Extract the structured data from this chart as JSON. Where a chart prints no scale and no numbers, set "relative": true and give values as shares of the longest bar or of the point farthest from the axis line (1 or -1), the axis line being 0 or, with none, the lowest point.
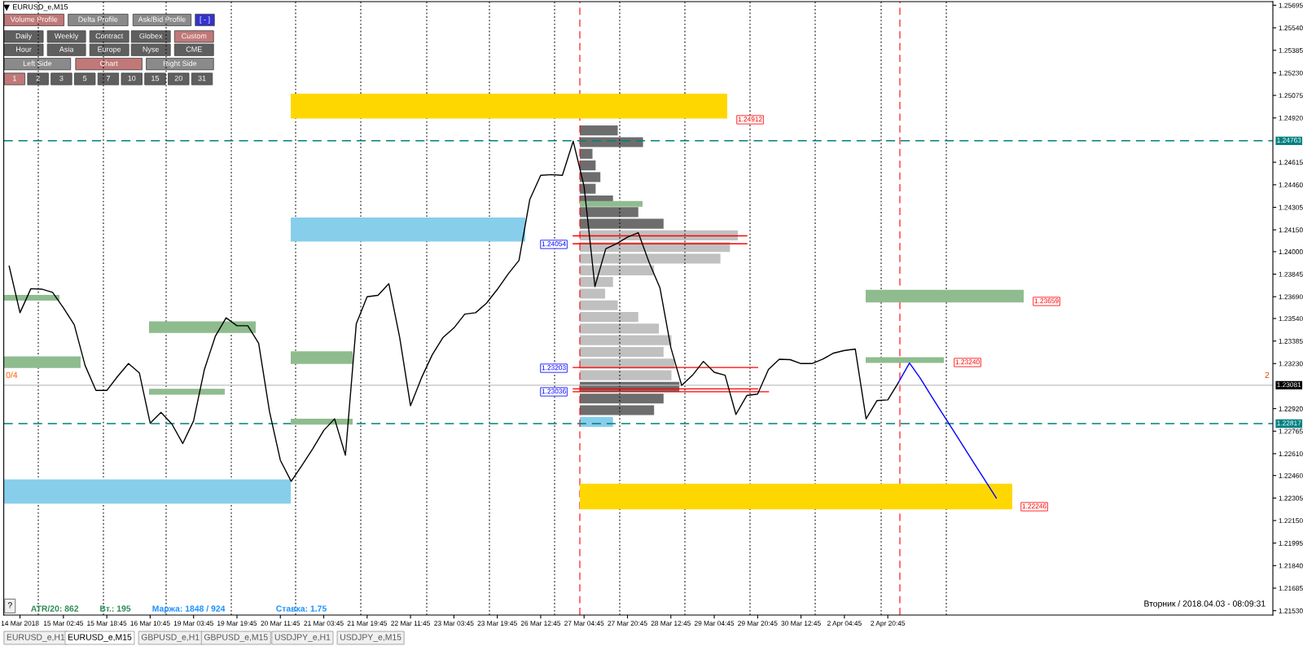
{
  "chart_data": [
    {
      "type": "line",
      "title": "EURUSD_e,M15",
      "categories": [
        null,
        "14 Mar 2018",
        null,
        null,
        null,
        "15 Mar 02:45",
        null,
        null,
        null,
        "15 Mar 18:45",
        null,
        null,
        null,
        "16 Mar 10:45",
        null,
        null,
        null,
        "19 Mar 03:45",
        null,
        null,
        null,
        "19 Mar 19:45",
        null,
        null,
        null,
        "20 Mar 11:45",
        null,
        null,
        null,
        "21 Mar 03:45",
        null,
        null,
        null,
        "21 Mar 19:45",
        null,
        null,
        null,
        "22 Mar 11:45",
        null,
        null,
        null,
        "23 Mar 03:45",
        null,
        null,
        null,
        "23 Mar 19:45",
        null,
        null,
        null,
        "26 Mar 12:45",
        null,
        null,
        null,
        "27 Mar 04:45",
        null,
        null,
        null,
        "27 Mar 20:45",
        null,
        null,
        null,
        "28 Mar 12:45",
        null,
        null,
        null,
        "29 Mar 04:45",
        null,
        null,
        null,
        "29 Mar 20:45",
        null,
        null,
        null,
        "30 Mar 12:45",
        null,
        null,
        null,
        "2 Apr 04:45",
        null,
        null,
        null,
        "2 Apr 20:45",
        null,
        null,
        null,
        null,
        null,
        null,
        null,
        null,
        null,
        null,
        null,
        null,
        null,
        null,
        null,
        null,
        null,
        null,
        null,
        null,
        null,
        null,
        null,
        null,
        null,
        null,
        null,
        null,
        null,
        null,
        null,
        null,
        null,
        null,
        null
      ],
      "ylim": [
        1.215,
        1.2572
      ],
      "yticks": [
        1.25695,
        {
          "value": 1.2554,
          "label": "1.25540"
        },
        1.25385,
        {
          "value": 1.2523,
          "label": "1.25230"
        },
        1.25075,
        {
          "value": 1.2492,
          "label": "1.24920"
        },
        1.24615,
        {
          "value": 1.2446,
          "label": "1.24460"
        },
        1.24305,
        {
          "value": 1.2415,
          "label": "1.24150"
        },
        {
          "value": 1.24,
          "label": "1.24000"
        },
        1.23845,
        {
          "value": 1.2369,
          "label": "1.23690"
        },
        {
          "value": 1.2354,
          "label": "1.23540"
        },
        1.23385,
        {
          "value": 1.2323,
          "label": "1.23230"
        },
        {
          "value": 1.2292,
          "label": "1.22920"
        },
        1.22765,
        {
          "value": 1.2261,
          "label": "1.22610"
        },
        {
          "value": 1.2246,
          "label": "1.22460"
        },
        1.22305,
        {
          "value": 1.2215,
          "label": "1.22150"
        },
        1.21995,
        {
          "value": 1.2184,
          "label": "1.21840"
        },
        1.21685,
        {
          "value": 1.2153,
          "label": "1.21530"
        }
      ],
      "legend": false,
      "grid": false,
      "bands": [
        {
          "axis": "y",
          "from": 1.24916,
          "to": 1.25087,
          "color": "#ffd700"
        },
        {
          "axis": "y",
          "from": 1.22227,
          "to": 1.22404,
          "color": "#ffd700"
        },
        {
          "axis": "y",
          "from": 1.22267,
          "to": 1.22433,
          "color": "#87ceeb"
        },
        {
          "axis": "y",
          "from": 1.24069,
          "to": 1.24235,
          "color": "#87ceeb"
        },
        {
          "axis": "y",
          "from": 1.23663,
          "to": 1.23703,
          "color": "#8fbc8f"
        },
        {
          "axis": "y",
          "from": 1.23199,
          "to": 1.2328,
          "color": "#8fbc8f"
        },
        {
          "axis": "y",
          "from": 1.2344,
          "to": 1.2352,
          "color": "#8fbc8f"
        },
        {
          "axis": "y",
          "from": 1.23016,
          "to": 1.23056,
          "color": "#8fbc8f"
        },
        {
          "axis": "y",
          "from": 1.23228,
          "to": 1.23314,
          "color": "#8fbc8f"
        },
        {
          "axis": "y",
          "from": 1.2281,
          "to": 1.2285,
          "color": "#8fbc8f"
        },
        {
          "axis": "y",
          "from": 1.24309,
          "to": 1.24349,
          "color": "#8fbc8f"
        },
        {
          "axis": "y",
          "from": 1.23651,
          "to": 1.23737,
          "color": "#8fbc8f"
        },
        {
          "axis": "y",
          "from": 1.23234,
          "to": 1.23274,
          "color": "#8fbc8f"
        }
      ],
      "series": [
        {
          "color": "#ff0000",
          "values": [
            null,
            null,
            null,
            null,
            null,
            null,
            null,
            null,
            null,
            null,
            null,
            null,
            null,
            null,
            null,
            null,
            null,
            null,
            null,
            null,
            null,
            null,
            null,
            null,
            null,
            null,
            null,
            null,
            null,
            null,
            null,
            null,
            null,
            null,
            null,
            null,
            null,
            null,
            null,
            null,
            null,
            null,
            null,
            null,
            null,
            null,
            null,
            null,
            null,
            null,
            null,
            null,
            1.24109,
            1.24109,
            1.24109,
            1.24109,
            1.24109,
            1.24109,
            1.24109,
            1.24109,
            1.24109,
            1.24109,
            1.24109,
            1.24109,
            1.24109,
            1.24109,
            1.24109,
            1.24109,
            1.24109,
            null,
            null,
            null,
            null,
            null,
            null,
            null,
            null,
            null,
            null,
            null,
            null,
            null,
            null,
            null,
            null,
            null,
            null,
            null,
            null,
            null,
            null,
            null,
            null,
            null,
            null,
            null,
            null,
            null,
            null,
            null,
            null,
            null,
            null,
            null,
            null,
            null,
            null,
            null,
            null,
            null,
            null,
            null,
            null,
            null,
            null,
            null,
            null
          ]
        },
        {
          "color": "#ff0000",
          "values": [
            null,
            null,
            null,
            null,
            null,
            null,
            null,
            null,
            null,
            null,
            null,
            null,
            null,
            null,
            null,
            null,
            null,
            null,
            null,
            null,
            null,
            null,
            null,
            null,
            null,
            null,
            null,
            null,
            null,
            null,
            null,
            null,
            null,
            null,
            null,
            null,
            null,
            null,
            null,
            null,
            null,
            null,
            null,
            null,
            null,
            null,
            null,
            null,
            null,
            null,
            null,
            null,
            1.24054,
            1.24054,
            1.24054,
            1.24054,
            1.24054,
            1.24054,
            1.24054,
            1.24054,
            1.24054,
            1.24054,
            1.24054,
            1.24054,
            1.24054,
            1.24054,
            1.24054,
            1.24054,
            1.24054,
            null,
            null,
            null,
            null,
            null,
            null,
            null,
            null,
            null,
            null,
            null,
            null,
            null,
            null,
            null,
            null,
            null,
            null,
            null,
            null,
            null,
            null,
            null,
            null,
            null,
            null,
            null,
            null,
            null,
            null,
            null,
            null,
            null,
            null,
            null,
            null,
            null,
            null,
            null,
            null,
            null,
            null,
            null,
            null,
            null,
            null,
            null,
            null
          ]
        },
        {
          "color": "#ff0000",
          "values": [
            null,
            null,
            null,
            null,
            null,
            null,
            null,
            null,
            null,
            null,
            null,
            null,
            null,
            null,
            null,
            null,
            null,
            null,
            null,
            null,
            null,
            null,
            null,
            null,
            null,
            null,
            null,
            null,
            null,
            null,
            null,
            null,
            null,
            null,
            null,
            null,
            null,
            null,
            null,
            null,
            null,
            null,
            null,
            null,
            null,
            null,
            null,
            null,
            null,
            null,
            null,
            null,
            1.23203,
            1.23203,
            1.23203,
            1.23203,
            1.23203,
            1.23203,
            1.23203,
            1.23203,
            1.23203,
            1.23203,
            1.23203,
            1.23203,
            1.23203,
            1.23203,
            1.23203,
            1.23203,
            1.23203,
            1.23203,
            null,
            null,
            null,
            null,
            null,
            null,
            null,
            null,
            null,
            null,
            null,
            null,
            null,
            null,
            null,
            null,
            null,
            null,
            null,
            null,
            null,
            null,
            null,
            null,
            null,
            null,
            null,
            null,
            null,
            null,
            null,
            null,
            null,
            null,
            null,
            null,
            null,
            null,
            null,
            null,
            null,
            null,
            null,
            null,
            null,
            null,
            null
          ]
        },
        {
          "color": "#ff0000",
          "values": [
            null,
            null,
            null,
            null,
            null,
            null,
            null,
            null,
            null,
            null,
            null,
            null,
            null,
            null,
            null,
            null,
            null,
            null,
            null,
            null,
            null,
            null,
            null,
            null,
            null,
            null,
            null,
            null,
            null,
            null,
            null,
            null,
            null,
            null,
            null,
            null,
            null,
            null,
            null,
            null,
            null,
            null,
            null,
            null,
            null,
            null,
            null,
            null,
            null,
            null,
            null,
            null,
            1.23056,
            1.23056,
            1.23056,
            1.23056,
            1.23056,
            1.23056,
            1.23056,
            1.23056,
            1.23056,
            1.23056,
            1.23056,
            1.23056,
            1.23056,
            1.23056,
            1.23056,
            1.23056,
            1.23056,
            1.23056,
            null,
            null,
            null,
            null,
            null,
            null,
            null,
            null,
            null,
            null,
            null,
            null,
            null,
            null,
            null,
            null,
            null,
            null,
            null,
            null,
            null,
            null,
            null,
            null,
            null,
            null,
            null,
            null,
            null,
            null,
            null,
            null,
            null,
            null,
            null,
            null,
            null,
            null,
            null,
            null,
            null,
            null,
            null,
            null,
            null,
            null,
            null
          ]
        },
        {
          "color": "#ff0000",
          "values": [
            null,
            null,
            null,
            null,
            null,
            null,
            null,
            null,
            null,
            null,
            null,
            null,
            null,
            null,
            null,
            null,
            null,
            null,
            null,
            null,
            null,
            null,
            null,
            null,
            null,
            null,
            null,
            null,
            null,
            null,
            null,
            null,
            null,
            null,
            null,
            null,
            null,
            null,
            null,
            null,
            null,
            null,
            null,
            null,
            null,
            null,
            null,
            null,
            null,
            null,
            null,
            null,
            1.23036,
            1.23036,
            1.23036,
            1.23036,
            1.23036,
            1.23036,
            1.23036,
            1.23036,
            1.23036,
            1.23036,
            1.23036,
            1.23036,
            1.23036,
            1.23036,
            1.23036,
            1.23036,
            1.23036,
            1.23036,
            1.23036,
            null,
            null,
            null,
            null,
            null,
            null,
            null,
            null,
            null,
            null,
            null,
            null,
            null,
            null,
            null,
            null,
            null,
            null,
            null,
            null,
            null,
            null,
            null,
            null,
            null,
            null,
            null,
            null,
            null,
            null,
            null,
            null,
            null,
            null,
            null,
            null,
            null,
            null,
            null,
            null,
            null,
            null,
            null,
            null,
            null,
            null
          ]
        },
        {
          "color": "#000000",
          "values": [
            1.239,
            1.2358,
            1.23745,
            1.23742,
            1.2372,
            1.23613,
            1.23497,
            1.23217,
            1.23045,
            1.23045,
            1.23142,
            1.2323,
            1.23166,
            1.2282,
            1.22894,
            1.22814,
            1.2268,
            1.22836,
            1.2319,
            1.23417,
            1.23545,
            1.2349,
            1.2349,
            1.2337,
            1.229,
            1.22565,
            1.2242,
            1.2253,
            1.22645,
            1.2277,
            1.2285,
            1.226,
            1.23503,
            1.2369,
            1.237,
            1.2378,
            1.2341,
            1.2294,
            1.2313,
            1.2329,
            1.2341,
            1.23475,
            1.2357,
            1.2358,
            1.23645,
            1.2374,
            1.23846,
            1.2394,
            1.2436,
            1.24525,
            1.2453,
            1.24525,
            1.2476,
            1.2445,
            1.2376,
            1.2402,
            1.24055,
            1.241,
            1.2413,
            1.23925,
            1.2375,
            1.2334,
            1.2308,
            1.2315,
            1.23245,
            1.2317,
            1.2315,
            1.2288,
            1.2301,
            1.2302,
            1.2319,
            1.2326,
            1.23257,
            1.2323,
            1.2323,
            1.2326,
            1.23302,
            1.2332,
            1.2333,
            1.2285,
            1.22975,
            1.2298,
            1.23102,
            null,
            null,
            null,
            null,
            null,
            null,
            null,
            null,
            null,
            null,
            null,
            null,
            null,
            null,
            null,
            null,
            null,
            null,
            null,
            null,
            null,
            null,
            null,
            null,
            null,
            null,
            null,
            null,
            null,
            null,
            null,
            null,
            null,
            null
          ]
        },
        {
          "color": "#0000ff",
          "values": [
            null,
            null,
            null,
            null,
            null,
            null,
            null,
            null,
            null,
            null,
            null,
            null,
            null,
            null,
            null,
            null,
            null,
            null,
            null,
            null,
            null,
            null,
            null,
            null,
            null,
            null,
            null,
            null,
            null,
            null,
            null,
            null,
            null,
            null,
            null,
            null,
            null,
            null,
            null,
            null,
            null,
            null,
            null,
            null,
            null,
            null,
            null,
            null,
            null,
            null,
            null,
            null,
            null,
            null,
            null,
            null,
            null,
            null,
            null,
            null,
            null,
            null,
            null,
            null,
            null,
            null,
            null,
            null,
            null,
            null,
            null,
            null,
            null,
            null,
            null,
            null,
            null,
            null,
            null,
            null,
            null,
            null,
            1.23102,
            1.23234,
            1.23129,
            1.23008,
            1.22891,
            1.22774,
            1.22656,
            1.22539,
            1.22422,
            1.22305,
            null,
            null,
            null,
            null,
            null,
            null,
            null,
            null,
            null,
            null,
            null,
            null,
            null,
            null,
            null,
            null,
            null,
            null,
            null,
            null,
            null,
            null,
            null,
            null,
            null
          ]
        }
      ],
      "ref_lines": [
        {
          "axis": "y",
          "value": 1.24763,
          "label": "1.24763",
          "color": "#008080",
          "line_style": "dashed"
        },
        {
          "axis": "y",
          "value": 1.22817,
          "label": "1.22817",
          "color": "#008080",
          "line_style": "dashed"
        },
        {
          "axis": "y",
          "value": 1.23081,
          "label": "1.23081",
          "color": "#c0c0c0",
          "line_style": "solid"
        }
      ],
      "annotations": [
        "Volume Profile",
        "Delta Profile",
        "Ask/Bid Profile",
        "[ - ]",
        "Daily",
        "Weekly",
        "Contract",
        "Globex",
        "Custom",
        "Hour",
        "Asia",
        "Europe",
        "Nyse",
        "CME",
        "Left Side",
        "Chart",
        "Right Side",
        "1",
        "2",
        "3",
        "5",
        "7",
        "10",
        "15",
        "20",
        "31",
        "0/4",
        "2",
        "?",
        "ATR/20: 862",
        "Вт.: 195",
        "Маржа: 1848 / 924",
        "Ставка: 1.75",
        "Вторник / 2018.04.03 - 08:09:31",
        "EURUSD_e,H1",
        "EURUSD_e,M15",
        "GBPUSD_e,H1",
        "GBPUSD_e,M15",
        "USDJPY_e,H1",
        "USDJPY_e,M15",
        "1.24912",
        "1.24054",
        "1.23659",
        "1.23240",
        "1.23203",
        "1.23036",
        "1.22246"
      ]
    },
    {
      "type": "bar",
      "orientation": "horizontal",
      "relative": true,
      "categories": [
        null,
        null,
        null,
        null,
        null,
        null,
        null,
        null,
        null,
        null,
        null,
        null,
        null,
        null,
        null,
        null,
        null,
        null,
        null,
        null,
        null,
        null,
        null,
        null,
        null,
        null
      ],
      "values": [
        0.24,
        0.4,
        0.08,
        0.1,
        0.13,
        0.1,
        0.21,
        0.37,
        0.53,
        1,
        0.95,
        0.89,
        0.47,
        0.21,
        0.16,
        0.24,
        0.37,
        0.5,
        0.58,
        0.53,
        0.6,
        0.58,
        0.63,
        0.53,
        0.47,
        0.21
      ],
      "colors": [
        "#6d6d6d",
        "#6d6d6d",
        "#6d6d6d",
        "#6d6d6d",
        "#6d6d6d",
        "#6d6d6d",
        "#6d6d6d",
        "#6d6d6d",
        "#6d6d6d",
        "#c0c0c0",
        "#c0c0c0",
        "#c0c0c0",
        "#c0c0c0",
        "#c0c0c0",
        "#c0c0c0",
        "#c0c0c0",
        "#c0c0c0",
        "#c0c0c0",
        "#c0c0c0",
        "#c0c0c0",
        "#c0c0c0",
        "#c0c0c0",
        "#6d6d6d",
        "#6d6d6d",
        "#6d6d6d",
        "#87ceeb"
      ]
    }
  ]
}
